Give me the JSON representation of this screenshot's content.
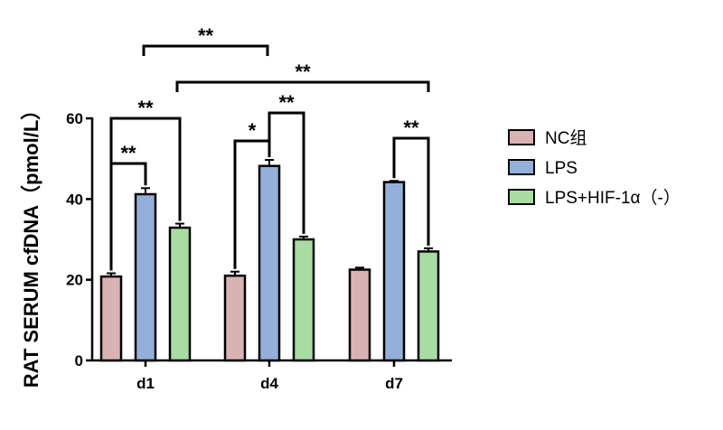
{
  "chart_data": {
    "type": "bar",
    "categories": [
      "d1",
      "d4",
      "d7"
    ],
    "ylabel": "RAT SERUM cfDNA（pmol/L）",
    "ylim": [
      0,
      60
    ],
    "yticks": [
      0,
      20,
      40,
      60
    ],
    "series": [
      {
        "name": "NC组",
        "color": "#d9b3b3",
        "values": [
          20.8,
          21.0,
          22.5
        ],
        "errors": [
          0.8,
          1.0,
          0.5
        ]
      },
      {
        "name": "LPS",
        "color": "#94afd9",
        "values": [
          41.2,
          48.2,
          44.2
        ],
        "errors": [
          1.5,
          1.5,
          0.3
        ]
      },
      {
        "name": "LPS+HIF-1α（-）",
        "color": "#a8dca3",
        "values": [
          32.9,
          30.0,
          27.0
        ],
        "errors": [
          1.0,
          0.7,
          0.8
        ]
      }
    ],
    "legend_position": "right",
    "significance": [
      {
        "label": "**",
        "group": 0,
        "from_series": 0,
        "to_series": 1
      },
      {
        "label": "**",
        "group": 0,
        "from_series": 0,
        "to_series": 2
      },
      {
        "label": "*",
        "group": 1,
        "from_series": 0,
        "to_series": 1
      },
      {
        "label": "**",
        "group": 1,
        "from_series": 1,
        "to_series": 2
      },
      {
        "label": "**",
        "group": 2,
        "from_series": 1,
        "to_series": 2
      },
      {
        "label": "**",
        "between": [
          "d1",
          "d4"
        ]
      },
      {
        "label": "**",
        "between": [
          "d1",
          "d7"
        ]
      }
    ]
  }
}
